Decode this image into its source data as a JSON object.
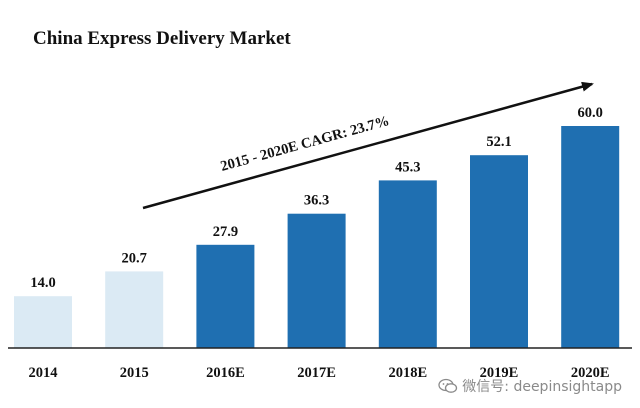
{
  "chart_data": {
    "type": "bar",
    "title": "China Express Delivery Market",
    "categories": [
      "2014",
      "2015",
      "2016E",
      "2017E",
      "2018E",
      "2019E",
      "2020E"
    ],
    "values": [
      14.0,
      20.7,
      27.9,
      36.3,
      45.3,
      52.1,
      60.0
    ],
    "value_labels": [
      "14.0",
      "20.7",
      "27.9",
      "36.3",
      "45.3",
      "52.1",
      "60.0"
    ],
    "bar_colors": [
      "#dbeaf4",
      "#dbeaf4",
      "#1f6fb1",
      "#1f6fb1",
      "#1f6fb1",
      "#1f6fb1",
      "#1f6fb1"
    ],
    "ylim": [
      0,
      60
    ],
    "xlabel": "",
    "ylabel": "",
    "grid": false,
    "annotation": {
      "text": "2015 - 2020E CAGR: 23.7%",
      "arrow_color": "#111111"
    }
  },
  "watermark": {
    "text": "微信号: deepinsightapp",
    "icon": "wechat-icon"
  }
}
